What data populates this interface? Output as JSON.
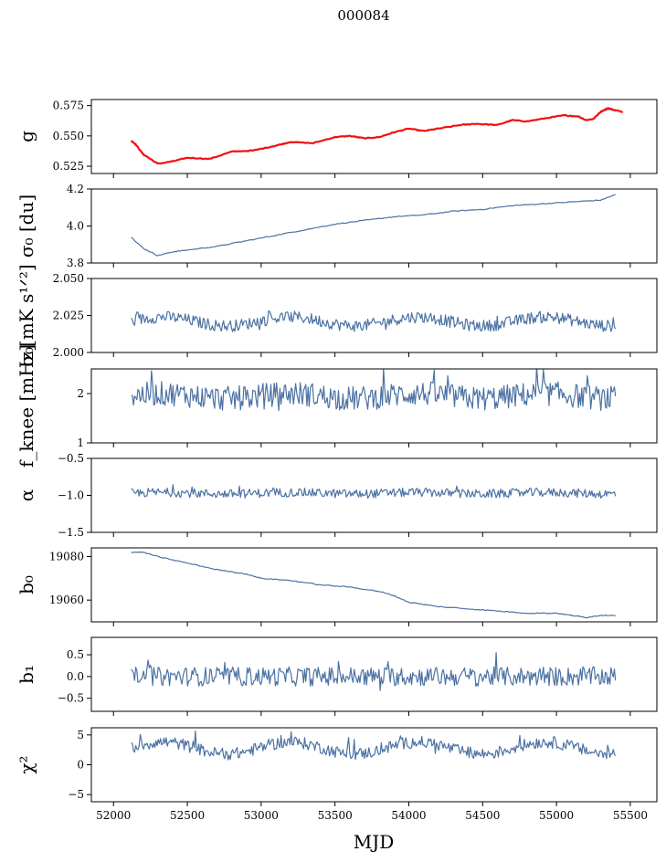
{
  "figure_title": "000084",
  "x_axis": {
    "label": "MJD",
    "range": [
      51850,
      55680
    ],
    "ticks": [
      52000,
      52500,
      53000,
      53500,
      54000,
      54500,
      55000,
      55500
    ],
    "tick_labels": [
      "52000",
      "52500",
      "53000",
      "53500",
      "54000",
      "54500",
      "55000",
      "55500"
    ]
  },
  "colors": {
    "series": "#4c72a4",
    "overlay": "#ff0000"
  },
  "chart_data": [
    {
      "type": "line",
      "panel_label": "g",
      "ylabel": "g",
      "ylim": [
        0.519,
        0.58
      ],
      "yticks": [
        0.525,
        0.55,
        0.575
      ],
      "ytick_labels": [
        "0.525",
        "0.550",
        "0.575"
      ],
      "series": [
        {
          "name": "gain",
          "color": "#4c72a4",
          "x": [
            52120,
            52150,
            52200,
            52300,
            52400,
            52500,
            52650,
            52800,
            52950,
            53100,
            53200,
            53350,
            53500,
            53600,
            53700,
            53800,
            53900,
            54000,
            54100,
            54200,
            54350,
            54450,
            54600,
            54700,
            54800,
            54950,
            55050,
            55150,
            55200,
            55250,
            55300,
            55350,
            55400
          ],
          "y": [
            0.546,
            0.543,
            0.535,
            0.527,
            0.529,
            0.532,
            0.531,
            0.537,
            0.538,
            0.542,
            0.545,
            0.544,
            0.549,
            0.55,
            0.548,
            0.549,
            0.553,
            0.556,
            0.554,
            0.556,
            0.559,
            0.56,
            0.559,
            0.563,
            0.562,
            0.565,
            0.567,
            0.566,
            0.563,
            0.564,
            0.57,
            0.572,
            0.571
          ]
        },
        {
          "name": "gain-fit",
          "color": "#ff0000",
          "x": [
            52120,
            52150,
            52200,
            52300,
            52400,
            52500,
            52650,
            52800,
            52950,
            53100,
            53200,
            53350,
            53500,
            53600,
            53700,
            53800,
            53900,
            54000,
            54100,
            54200,
            54350,
            54450,
            54600,
            54700,
            54800,
            54950,
            55050,
            55150,
            55200,
            55250,
            55300,
            55350,
            55400,
            55450
          ],
          "y": [
            0.546,
            0.543,
            0.535,
            0.527,
            0.529,
            0.532,
            0.531,
            0.537,
            0.538,
            0.542,
            0.545,
            0.544,
            0.549,
            0.55,
            0.548,
            0.549,
            0.553,
            0.556,
            0.554,
            0.556,
            0.559,
            0.56,
            0.559,
            0.563,
            0.562,
            0.565,
            0.567,
            0.566,
            0.563,
            0.564,
            0.57,
            0.573,
            0.571,
            0.57
          ]
        }
      ]
    },
    {
      "type": "line",
      "panel_label": "sigma0-du",
      "ylabel": "σ₀ [du]",
      "ylim": [
        3.8,
        4.2
      ],
      "yticks": [
        3.8,
        4.0,
        4.2
      ],
      "ytick_labels": [
        "3.8",
        "4.0",
        "4.2"
      ],
      "series": [
        {
          "name": "sigma0",
          "color": "#4c72a4",
          "x": [
            52120,
            52200,
            52300,
            52400,
            52500,
            52700,
            52900,
            53100,
            53300,
            53500,
            53700,
            53900,
            54100,
            54300,
            54500,
            54700,
            54900,
            55100,
            55300,
            55400
          ],
          "y": [
            3.94,
            3.88,
            3.84,
            3.86,
            3.87,
            3.89,
            3.92,
            3.95,
            3.98,
            4.01,
            4.03,
            4.05,
            4.06,
            4.08,
            4.09,
            4.11,
            4.12,
            4.13,
            4.14,
            4.17
          ]
        }
      ]
    },
    {
      "type": "line",
      "panel_label": "sigma0-mK",
      "ylabel": "σ₀[mK s¹ᐟ²]",
      "ylim": [
        2.0,
        2.05
      ],
      "yticks": [
        2.0,
        2.025,
        2.05
      ],
      "ytick_labels": [
        "2.000",
        "2.025",
        "2.050"
      ],
      "noise": {
        "base": 2.021,
        "amp": 0.004,
        "wave": 0.003
      },
      "series": [
        {
          "name": "sigma0-physical",
          "color": "#4c72a4"
        }
      ]
    },
    {
      "type": "line",
      "panel_label": "fknee",
      "ylabel": "f_knee [mHz]",
      "ylim": [
        1,
        2.5
      ],
      "yticks": [
        1,
        2
      ],
      "ytick_labels": [
        "1",
        "2"
      ],
      "noise": {
        "base": 1.95,
        "amp": 0.25,
        "wave": 0.05
      },
      "series": [
        {
          "name": "fknee",
          "color": "#4c72a4"
        }
      ]
    },
    {
      "type": "line",
      "panel_label": "alpha",
      "ylabel": "α",
      "ylim": [
        -1.5,
        -0.5
      ],
      "yticks": [
        -1.5,
        -1.0,
        -0.5
      ],
      "ytick_labels": [
        "−1.5",
        "−1.0",
        "−0.5"
      ],
      "noise": {
        "base": -0.97,
        "amp": 0.06,
        "wave": 0.01
      },
      "series": [
        {
          "name": "alpha",
          "color": "#4c72a4"
        }
      ]
    },
    {
      "type": "line",
      "panel_label": "b0",
      "ylabel": "b₀",
      "ylim": [
        19050,
        19084
      ],
      "yticks": [
        19060,
        19080
      ],
      "ytick_labels": [
        "19060",
        "19080"
      ],
      "series": [
        {
          "name": "b0",
          "color": "#4c72a4",
          "x": [
            52120,
            52200,
            52300,
            52500,
            52700,
            52900,
            53000,
            53200,
            53400,
            53600,
            53800,
            53900,
            54000,
            54200,
            54400,
            54600,
            54800,
            55000,
            55100,
            55200,
            55300,
            55400
          ],
          "y": [
            19082,
            19082,
            19080,
            19077,
            19074,
            19072,
            19070,
            19069,
            19067,
            19066,
            19064,
            19062,
            19059,
            19057,
            19056,
            19055,
            19054,
            19054,
            19053,
            19052,
            19053,
            19053
          ]
        }
      ]
    },
    {
      "type": "line",
      "panel_label": "b1",
      "ylabel": "b₁",
      "ylim": [
        -0.8,
        0.9
      ],
      "yticks": [
        -0.5,
        0.0,
        0.5
      ],
      "ytick_labels": [
        "−0.5",
        "0.0",
        "0.5"
      ],
      "noise": {
        "base": 0.0,
        "amp": 0.22,
        "wave": 0.0
      },
      "series": [
        {
          "name": "b1",
          "color": "#4c72a4"
        }
      ]
    },
    {
      "type": "line",
      "panel_label": "chi2",
      "ylabel": "χ²",
      "ylim": [
        -6.2,
        6.2
      ],
      "yticks": [
        -5,
        0,
        5
      ],
      "ytick_labels": [
        "−5",
        "0",
        "5"
      ],
      "noise": {
        "base": 2.8,
        "amp": 1.0,
        "wave": 1.0
      },
      "series": [
        {
          "name": "chi2",
          "color": "#4c72a4"
        }
      ]
    }
  ]
}
